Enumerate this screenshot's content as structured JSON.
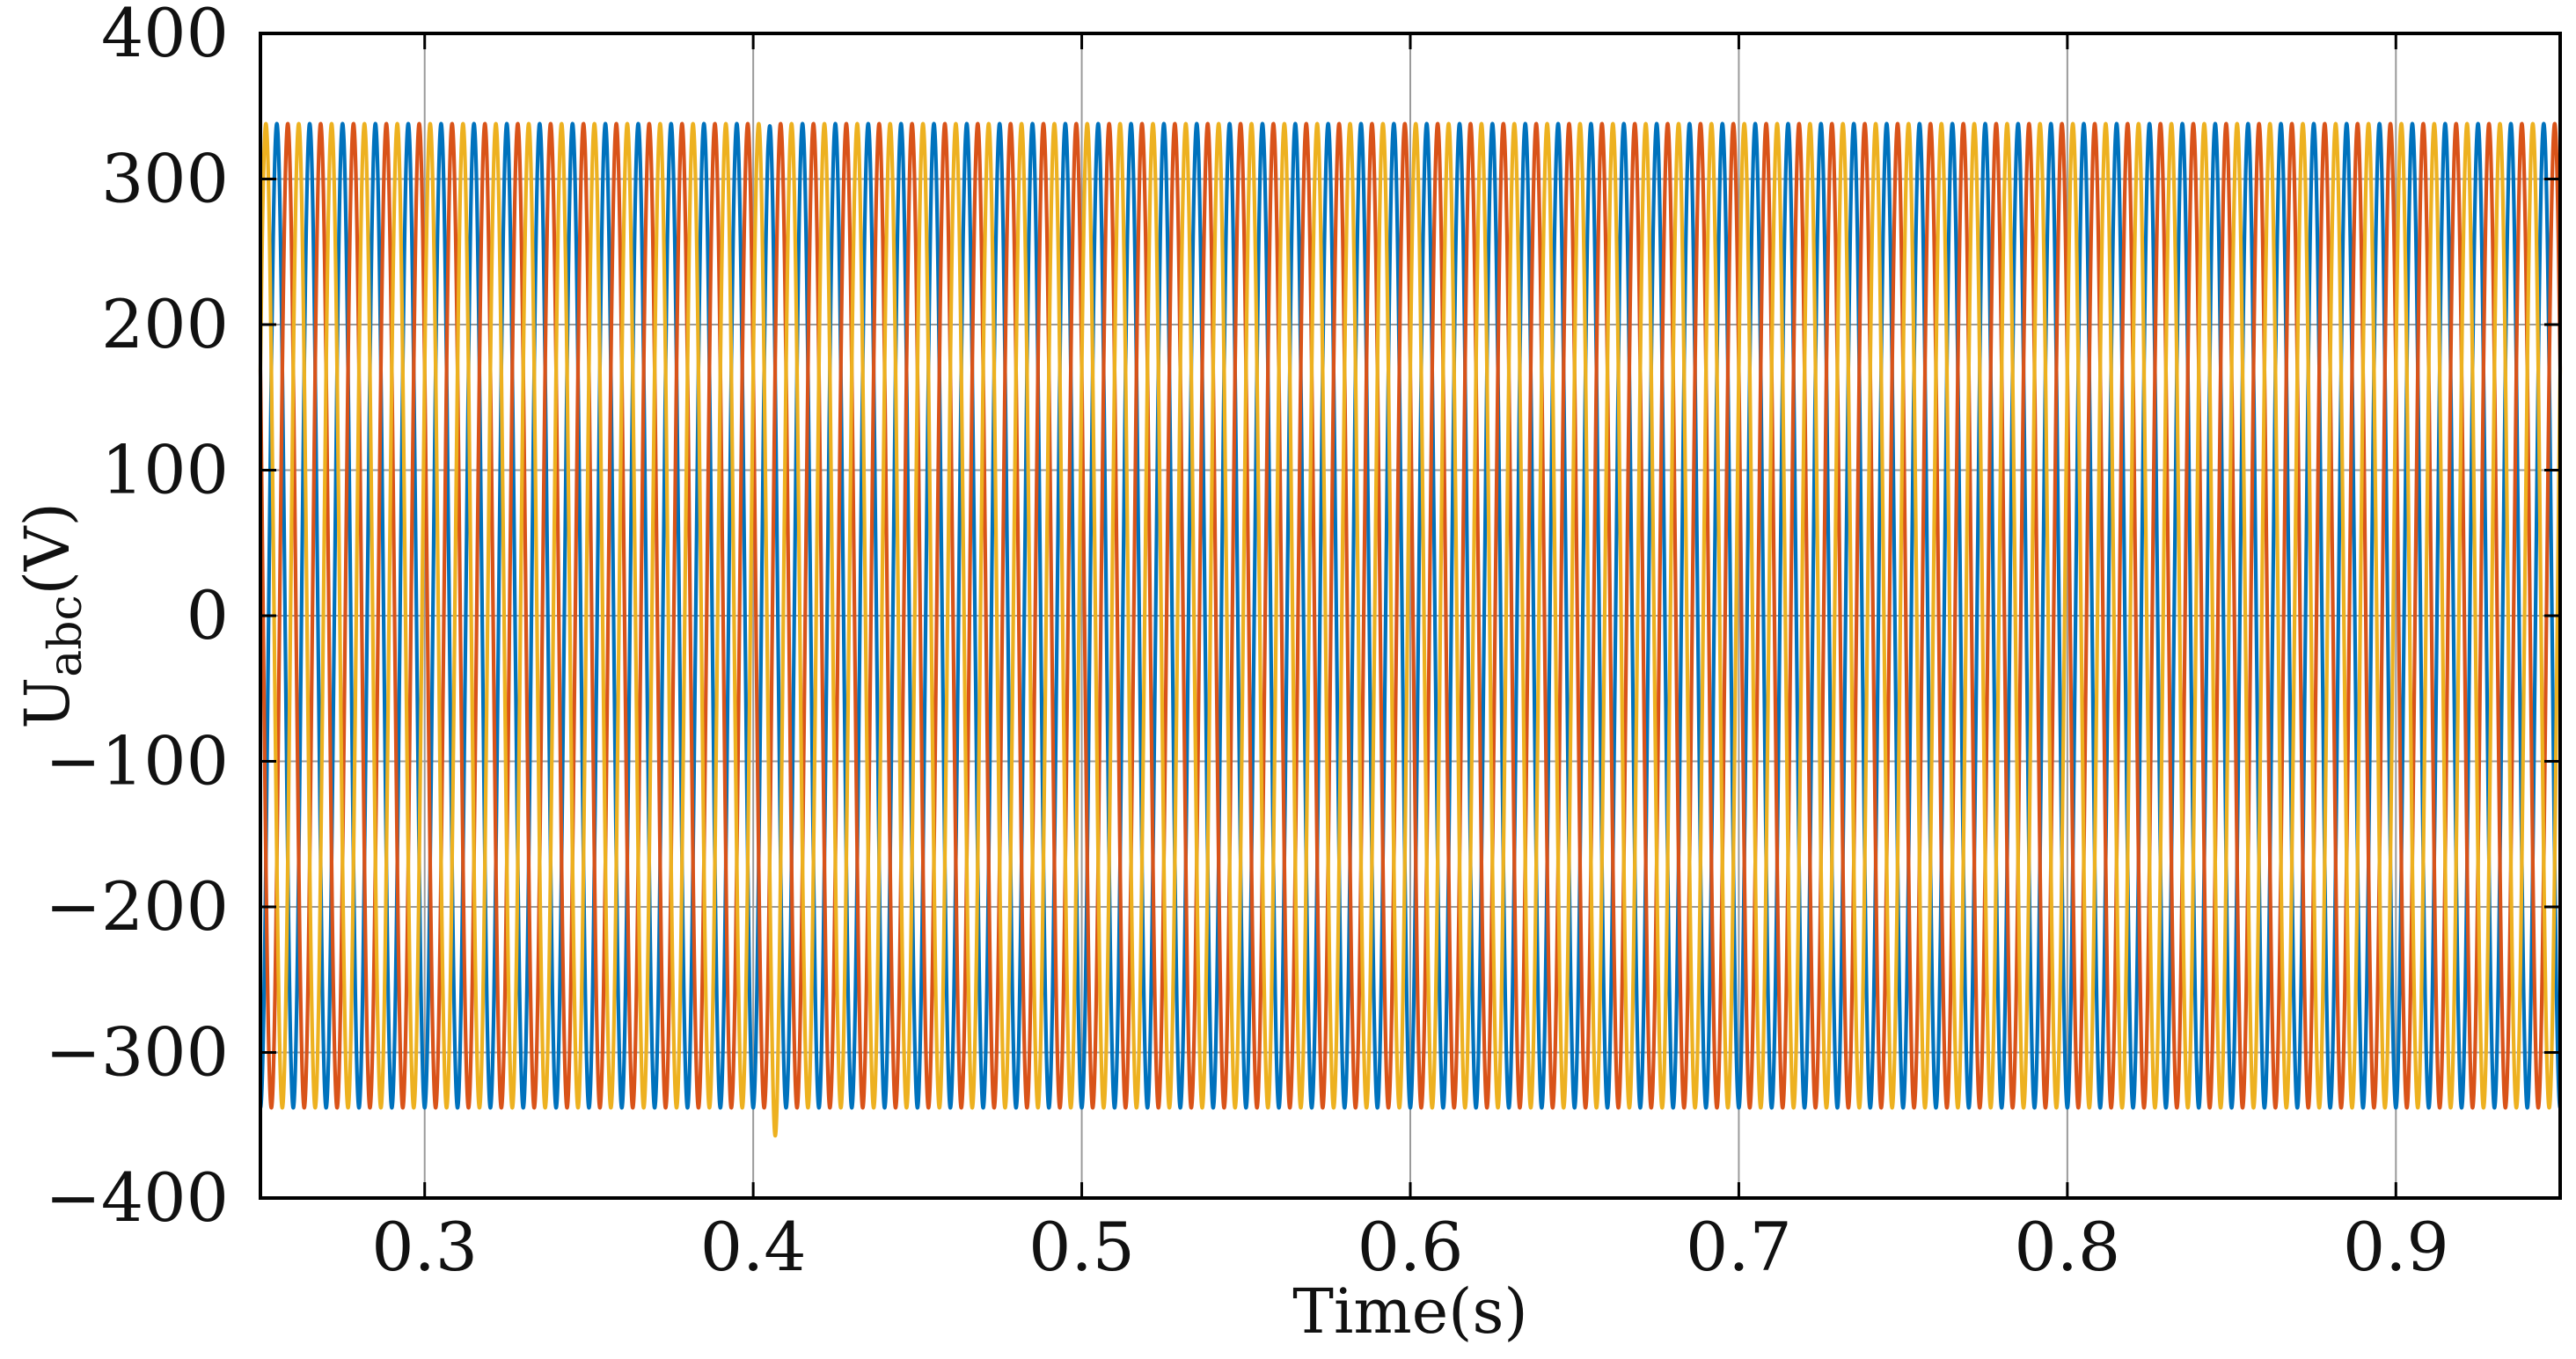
{
  "chart_data": {
    "type": "line",
    "title": "",
    "xlabel": "Time(s)",
    "ylabel_main": "U",
    "ylabel_sub": "abc",
    "ylabel_unit": "(V)",
    "xlim": [
      0.25,
      0.95
    ],
    "ylim": [
      -400,
      400
    ],
    "x_ticks": [
      0.3,
      0.4,
      0.5,
      0.6,
      0.7,
      0.8,
      0.9
    ],
    "x_tick_labels": [
      "0.3",
      "0.4",
      "0.5",
      "0.6",
      "0.7",
      "0.8",
      "0.9"
    ],
    "y_ticks": [
      400,
      300,
      200,
      100,
      0,
      -100,
      -200,
      -300,
      -400
    ],
    "y_tick_labels": [
      "400",
      "300",
      "200",
      "100",
      "0",
      "−100",
      "−200",
      "−300",
      "−400"
    ],
    "grid": true,
    "legend": false,
    "series": [
      {
        "color": "#0072BD",
        "amplitude": 338,
        "frequency_hz": 100,
        "phase_deg": -90,
        "t_start": 0.25,
        "t_end": 0.95,
        "events": [
          {
            "t": 0.403,
            "min_value": 320
          }
        ]
      },
      {
        "color": "#D95319",
        "amplitude": 338,
        "frequency_hz": 100,
        "phase_deg": 150,
        "t_start": 0.25,
        "t_end": 0.95,
        "events": [
          {
            "t": 0.8,
            "min_value": -280
          }
        ]
      },
      {
        "color": "#EDB120",
        "amplitude": 338,
        "frequency_hz": 100,
        "phase_deg": 30,
        "t_start": 0.25,
        "t_end": 0.95,
        "events": [
          {
            "t": 0.407,
            "min_value": -358
          }
        ]
      }
    ]
  }
}
